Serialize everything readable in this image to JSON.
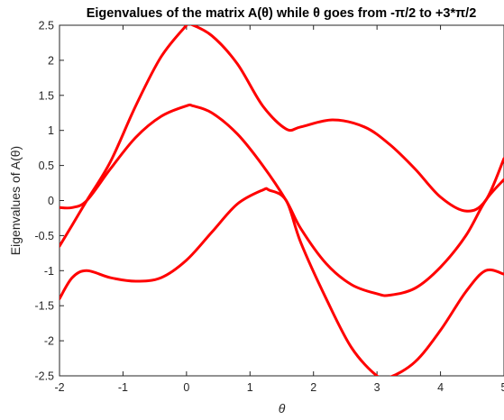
{
  "chart_data": {
    "type": "line",
    "title": "Eigenvalues of the matrix A(θ) while θ goes from -π/2 to +3*π/2",
    "xlabel": "θ",
    "ylabel": "Eigenvalues of A(θ)",
    "xlim": [
      -2,
      5
    ],
    "ylim": [
      -2.5,
      2.5
    ],
    "x_ticks": [
      "-2",
      "-1",
      "0",
      "1",
      "2",
      "3",
      "4",
      "5"
    ],
    "y_ticks": [
      "-2.5",
      "-2",
      "-1.5",
      "-1",
      "-0.5",
      "0",
      "0.5",
      "1",
      "1.5",
      "2",
      "2.5"
    ],
    "grid": false,
    "legend": "none",
    "line_color": "#ff0000",
    "series": [
      {
        "x": [
          -2,
          -1.8,
          -1.57,
          -1.2,
          -0.8,
          -0.4,
          0,
          0.05,
          0.4,
          0.8,
          1.2,
          1.57,
          1.8,
          2.3,
          2.8,
          3.2,
          3.6,
          4.0,
          4.4,
          4.71,
          5
        ],
        "y": [
          -0.65,
          -0.35,
          0.0,
          0.55,
          1.35,
          2.05,
          2.5,
          2.52,
          2.35,
          1.95,
          1.35,
          1.02,
          1.05,
          1.15,
          1.05,
          0.8,
          0.45,
          0.05,
          -0.15,
          0.0,
          0.6
        ]
      },
      {
        "x": [
          -2,
          -1.8,
          -1.57,
          -1.2,
          -0.8,
          -0.4,
          0,
          0.1,
          0.4,
          0.8,
          1.2,
          1.57,
          1.8,
          2.2,
          2.6,
          3.0,
          3.2,
          3.6,
          4.0,
          4.4,
          4.71,
          5
        ],
        "y": [
          -0.1,
          -0.1,
          0.0,
          0.45,
          0.9,
          1.2,
          1.35,
          1.35,
          1.25,
          0.95,
          0.5,
          0.0,
          -0.4,
          -0.9,
          -1.2,
          -1.33,
          -1.35,
          -1.25,
          -0.95,
          -0.5,
          0.0,
          0.3
        ]
      },
      {
        "x": [
          -2,
          -1.8,
          -1.57,
          -1.2,
          -0.8,
          -0.4,
          0,
          0.4,
          0.8,
          1.2,
          1.3,
          1.57,
          1.8,
          2.2,
          2.6,
          3.0,
          3.2,
          3.6,
          4.0,
          4.4,
          4.71,
          5
        ],
        "y": [
          -1.4,
          -1.1,
          -1.0,
          -1.1,
          -1.15,
          -1.1,
          -0.85,
          -0.45,
          -0.05,
          0.15,
          0.15,
          0.0,
          -0.6,
          -1.4,
          -2.1,
          -2.5,
          -2.52,
          -2.3,
          -1.85,
          -1.3,
          -1.0,
          -1.05
        ]
      }
    ]
  }
}
